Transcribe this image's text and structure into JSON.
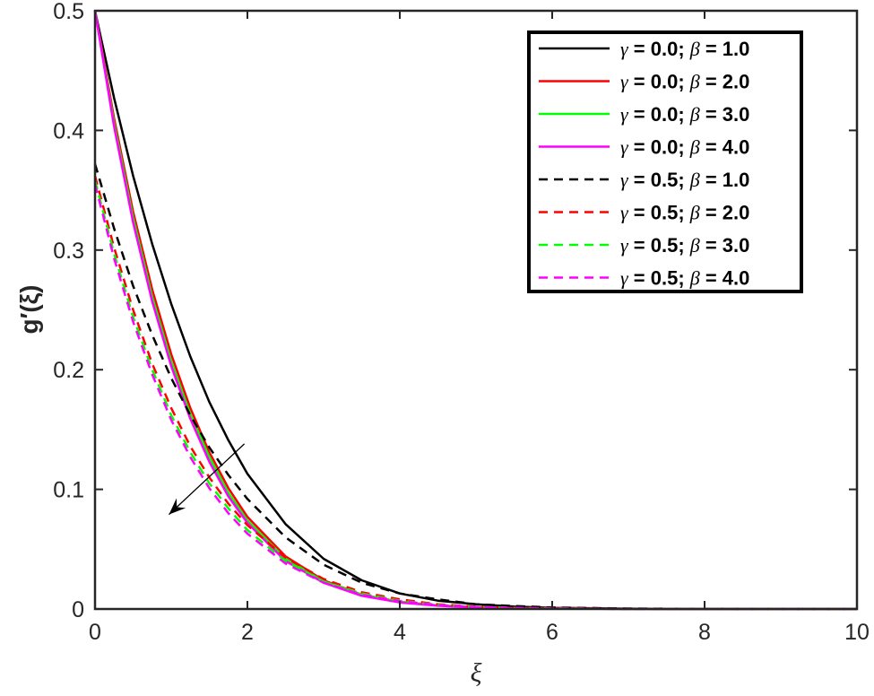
{
  "chart_data": {
    "type": "line",
    "title": "",
    "xlabel": "ξ",
    "ylabel": "g′(ξ)",
    "xlim": [
      0,
      10
    ],
    "ylim": [
      0,
      0.5
    ],
    "xticks": [
      "0",
      "2",
      "4",
      "6",
      "8",
      "10"
    ],
    "yticks": [
      "0",
      "0.1",
      "0.2",
      "0.3",
      "0.4",
      "0.5"
    ],
    "grid": false,
    "legend_position": "top-right",
    "x": [
      0,
      0.25,
      0.5,
      0.75,
      1,
      1.25,
      1.5,
      1.75,
      2,
      2.5,
      3,
      3.5,
      4,
      4.5,
      5,
      5.5,
      6,
      7,
      8,
      9,
      10
    ],
    "series": [
      {
        "name": "γ = 0.0; β = 1.0",
        "color": "#000000",
        "dash": "solid",
        "values": [
          0.5,
          0.427,
          0.362,
          0.305,
          0.255,
          0.211,
          0.173,
          0.141,
          0.113,
          0.071,
          0.042,
          0.024,
          0.013,
          0.007,
          0.004,
          0.002,
          0.001,
          0.0003,
          0.0001,
          0,
          0
        ]
      },
      {
        "name": "γ = 0.0; β = 2.0",
        "color": "#ff0000",
        "dash": "solid",
        "values": [
          0.5,
          0.41,
          0.332,
          0.267,
          0.213,
          0.168,
          0.131,
          0.101,
          0.077,
          0.044,
          0.024,
          0.012,
          0.006,
          0.003,
          0.0015,
          0.0007,
          0.0003,
          0.0001,
          0,
          0,
          0
        ]
      },
      {
        "name": "γ = 0.0; β = 3.0",
        "color": "#00ff00",
        "dash": "solid",
        "values": [
          0.5,
          0.406,
          0.327,
          0.261,
          0.207,
          0.163,
          0.127,
          0.097,
          0.074,
          0.042,
          0.023,
          0.012,
          0.006,
          0.003,
          0.0014,
          0.0006,
          0.0003,
          0.0001,
          0,
          0,
          0
        ]
      },
      {
        "name": "γ = 0.0; β = 4.0",
        "color": "#ff00ff",
        "dash": "solid",
        "values": [
          0.5,
          0.403,
          0.323,
          0.257,
          0.203,
          0.159,
          0.123,
          0.094,
          0.072,
          0.04,
          0.022,
          0.011,
          0.0055,
          0.0027,
          0.0013,
          0.0006,
          0.0003,
          0.0001,
          0,
          0,
          0
        ]
      },
      {
        "name": "γ = 0.5; β = 1.0",
        "color": "#000000",
        "dash": "dashed",
        "values": [
          0.372,
          0.318,
          0.27,
          0.229,
          0.193,
          0.162,
          0.135,
          0.112,
          0.092,
          0.06,
          0.037,
          0.022,
          0.013,
          0.008,
          0.004,
          0.0025,
          0.0013,
          0.0004,
          0.0001,
          0,
          0
        ]
      },
      {
        "name": "γ = 0.5; β = 2.0",
        "color": "#ff0000",
        "dash": "dashed",
        "values": [
          0.362,
          0.302,
          0.25,
          0.205,
          0.168,
          0.136,
          0.11,
          0.088,
          0.07,
          0.043,
          0.025,
          0.014,
          0.008,
          0.004,
          0.002,
          0.001,
          0.0005,
          0.0001,
          0,
          0,
          0
        ]
      },
      {
        "name": "γ = 0.5; β = 3.0",
        "color": "#00ff00",
        "dash": "dashed",
        "values": [
          0.358,
          0.297,
          0.244,
          0.2,
          0.162,
          0.131,
          0.105,
          0.084,
          0.066,
          0.04,
          0.023,
          0.013,
          0.007,
          0.0035,
          0.0018,
          0.0009,
          0.0004,
          0.0001,
          0,
          0,
          0
        ]
      },
      {
        "name": "γ = 0.5; β = 4.0",
        "color": "#ff00ff",
        "dash": "dashed",
        "values": [
          0.355,
          0.293,
          0.24,
          0.196,
          0.158,
          0.127,
          0.101,
          0.08,
          0.063,
          0.038,
          0.022,
          0.012,
          0.0065,
          0.0033,
          0.0017,
          0.0008,
          0.0004,
          0.0001,
          0,
          0,
          0
        ]
      }
    ],
    "annotation": {
      "type": "arrow",
      "from": [
        1.96,
        0.138
      ],
      "to": [
        0.97,
        0.079
      ]
    }
  }
}
